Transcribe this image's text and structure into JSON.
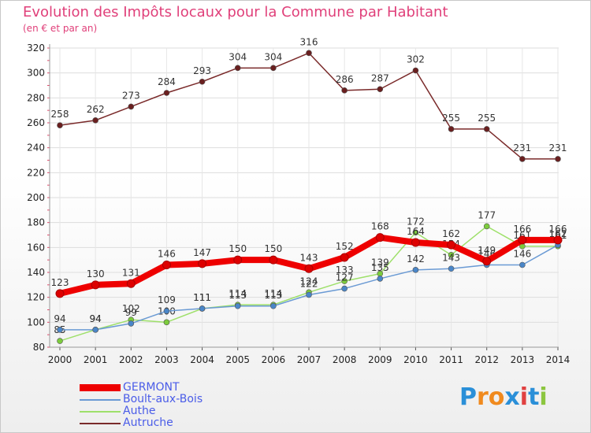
{
  "title": "Evolution des Impôts locaux pour la Commune par Habitant",
  "subtitle": "(en € et par an)",
  "brand": {
    "letters": [
      "P",
      "r",
      "o",
      "x",
      "i",
      "t",
      "i"
    ],
    "colors": [
      "#2a8fd8",
      "#f08a1e",
      "#f08a1e",
      "#2a8fd8",
      "#e04040",
      "#2a8fd8",
      "#8cc63f"
    ]
  },
  "chart_data": {
    "type": "line",
    "categories": [
      "2000",
      "2001",
      "2002",
      "2003",
      "2004",
      "2005",
      "2006",
      "2007",
      "2008",
      "2009",
      "2010",
      "2011",
      "2012",
      "2013",
      "2014"
    ],
    "yticks": [
      "80",
      "100",
      "120",
      "140",
      "160",
      "180",
      "200",
      "220",
      "240",
      "260",
      "280",
      "300",
      "320"
    ],
    "ylim": [
      80,
      320
    ],
    "grid": true,
    "series": [
      {
        "name": "Autruche",
        "color": "#7a2a2a",
        "marker": "#6a1f1f",
        "width": "thin",
        "values": [
          258,
          262,
          273,
          284,
          293,
          304,
          304,
          316,
          286,
          287,
          302,
          255,
          255,
          231,
          231
        ],
        "labels": [
          "258",
          "262",
          "273",
          "284",
          "293",
          "304",
          "304",
          "316",
          "286",
          "287",
          "302",
          "255",
          "255",
          "231",
          "231"
        ]
      },
      {
        "name": "Authe",
        "color": "#9ee06a",
        "marker": "#7ccc3c",
        "width": "thin",
        "values": [
          85,
          94,
          102,
          100,
          111,
          114,
          114,
          124,
          133,
          139,
          172,
          154,
          177,
          161,
          161
        ],
        "labels": [
          "85",
          "94",
          "102",
          "100",
          "111",
          "114",
          "114",
          "124",
          "133",
          "139",
          "172",
          "154",
          "177",
          "161",
          "161"
        ]
      },
      {
        "name": "Boult-aux-Bois",
        "color": "#6a9ad4",
        "marker": "#4a86c8",
        "width": "thin",
        "values": [
          94,
          94,
          99,
          109,
          111,
          113,
          113,
          122,
          127,
          135,
          142,
          143,
          146,
          146,
          162
        ],
        "labels": [
          "94",
          "94",
          "99",
          "109",
          "111",
          "113",
          "113",
          "122",
          "127",
          "135",
          "142",
          "143",
          "146",
          "146",
          "162"
        ]
      },
      {
        "name": "GERMONT",
        "color": "#ee0000",
        "marker": "#dd0000",
        "width": "thick",
        "values": [
          123,
          130,
          131,
          146,
          147,
          150,
          150,
          143,
          152,
          168,
          164,
          162,
          149,
          166,
          166
        ],
        "labels": [
          "123",
          "130",
          "131",
          "146",
          "147",
          "150",
          "150",
          "143",
          "152",
          "168",
          "164",
          "162",
          "149",
          "166",
          "166"
        ]
      }
    ]
  },
  "legend": [
    {
      "name": "GERMONT",
      "color": "#ee0000",
      "thick": true
    },
    {
      "name": "Boult-aux-Bois",
      "color": "#6a9ad4",
      "thick": false
    },
    {
      "name": "Authe",
      "color": "#9ee06a",
      "thick": false
    },
    {
      "name": "Autruche",
      "color": "#7a2a2a",
      "thick": false
    }
  ]
}
